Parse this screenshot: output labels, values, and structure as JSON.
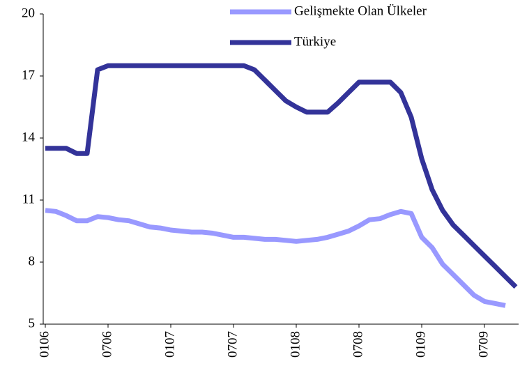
{
  "chart_data": {
    "type": "line",
    "categories": [
      "0106",
      null,
      null,
      null,
      null,
      null,
      "0706",
      null,
      null,
      null,
      null,
      null,
      "0107",
      null,
      null,
      null,
      null,
      null,
      "0707",
      null,
      null,
      null,
      null,
      null,
      "0108",
      null,
      null,
      null,
      null,
      null,
      "0708",
      null,
      null,
      null,
      null,
      null,
      "0109",
      null,
      null,
      null,
      null,
      null,
      "0709",
      null,
      null,
      null
    ],
    "series": [
      {
        "name": "Gelişmekte Olan Ülkeler",
        "color": "#9999ff",
        "values": [
          10.5,
          10.45,
          10.25,
          10.0,
          10.0,
          10.2,
          10.15,
          10.05,
          10.0,
          9.85,
          9.7,
          9.65,
          9.55,
          9.5,
          9.45,
          9.45,
          9.4,
          9.3,
          9.2,
          9.2,
          9.15,
          9.1,
          9.1,
          9.05,
          9.0,
          9.05,
          9.1,
          9.2,
          9.35,
          9.5,
          9.75,
          10.05,
          10.1,
          10.3,
          10.45,
          10.35,
          9.2,
          8.7,
          7.9,
          7.4,
          6.9,
          6.4,
          6.1,
          6.0,
          5.9,
          null
        ]
      },
      {
        "name": "Türkiye",
        "color": "#333399",
        "values": [
          13.5,
          13.5,
          13.5,
          13.25,
          13.25,
          17.3,
          17.5,
          17.5,
          17.5,
          17.5,
          17.5,
          17.5,
          17.5,
          17.5,
          17.5,
          17.5,
          17.5,
          17.5,
          17.5,
          17.5,
          17.3,
          16.8,
          16.3,
          15.8,
          15.5,
          15.25,
          15.25,
          15.25,
          15.7,
          16.2,
          16.7,
          16.7,
          16.7,
          16.7,
          16.2,
          15.0,
          13.0,
          11.5,
          10.5,
          9.8,
          9.3,
          8.8,
          8.3,
          7.8,
          7.3,
          6.8
        ]
      }
    ],
    "ylim": [
      5,
      20
    ],
    "yticks": [
      5,
      8,
      11,
      14,
      17,
      20
    ],
    "grid": false,
    "legend": "top"
  }
}
